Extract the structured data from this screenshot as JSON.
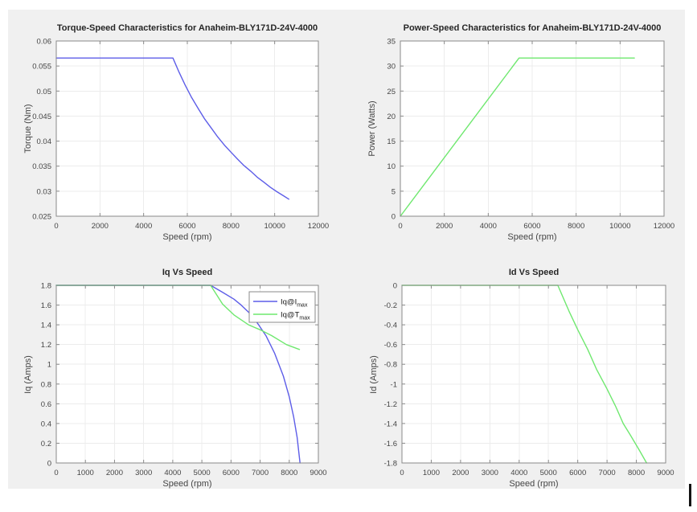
{
  "style": {
    "page_background": "#ffffff",
    "figure_background": "#f0f0f0",
    "plot_background": "#ffffff",
    "grid_color": "#ececec",
    "axis_color": "#8a8a8a",
    "tick_text_color": "#454545",
    "title_text_color": "#262626",
    "blue_line": "#5d5de8",
    "green_line": "#6fe86f",
    "legend_border": "#8a8a8a",
    "legend_background": "#ffffff"
  },
  "chart_data": [
    {
      "type": "line",
      "title": "Torque-Speed Characteristics for Anaheim-BLY171D-24V-4000",
      "xlabel": "Speed (rpm)",
      "ylabel": "Torque (Nm)",
      "xlim": [
        0,
        12000
      ],
      "ylim": [
        0.025,
        0.06
      ],
      "grid": true,
      "legend": null,
      "xticks": [
        0,
        2000,
        4000,
        6000,
        8000,
        10000,
        12000
      ],
      "xtick_labels": [
        "0",
        "2000",
        "4000",
        "6000",
        "8000",
        "10000",
        "12000"
      ],
      "yticks": [
        0.025,
        0.03,
        0.035,
        0.04,
        0.045,
        0.05,
        0.055,
        0.06
      ],
      "ytick_labels": [
        "0.025",
        "0.03",
        "0.035",
        "0.04",
        "0.045",
        "0.05",
        "0.055",
        "0.06"
      ],
      "series": [
        {
          "name": "Torque",
          "color": "#5d5de8",
          "points": [
            [
              0,
              0.0566
            ],
            [
              5340,
              0.0566
            ],
            [
              5600,
              0.054
            ],
            [
              5900,
              0.0512
            ],
            [
              6200,
              0.0487
            ],
            [
              6500,
              0.0465
            ],
            [
              6800,
              0.0444
            ],
            [
              7100,
              0.0426
            ],
            [
              7400,
              0.0408
            ],
            [
              7700,
              0.0392
            ],
            [
              8000,
              0.0378
            ],
            [
              8300,
              0.0364
            ],
            [
              8600,
              0.0351
            ],
            [
              8900,
              0.034
            ],
            [
              9200,
              0.0328
            ],
            [
              9500,
              0.0318
            ],
            [
              9800,
              0.0308
            ],
            [
              10100,
              0.0299
            ],
            [
              10400,
              0.0291
            ],
            [
              10650,
              0.0284
            ]
          ]
        }
      ]
    },
    {
      "type": "line",
      "title": "Power-Speed Characteristics for Anaheim-BLY171D-24V-4000",
      "xlabel": "Speed (rpm)",
      "ylabel": "Power (Watts)",
      "xlim": [
        0,
        12000
      ],
      "ylim": [
        0,
        35
      ],
      "grid": true,
      "legend": null,
      "xticks": [
        0,
        2000,
        4000,
        6000,
        8000,
        10000,
        12000
      ],
      "xtick_labels": [
        "0",
        "2000",
        "4000",
        "6000",
        "8000",
        "10000",
        "12000"
      ],
      "yticks": [
        0,
        5,
        10,
        15,
        20,
        25,
        30,
        35
      ],
      "ytick_labels": [
        "0",
        "5",
        "10",
        "15",
        "20",
        "25",
        "30",
        "35"
      ],
      "series": [
        {
          "name": "Power",
          "color": "#6fe86f",
          "points": [
            [
              0,
              0
            ],
            [
              5400,
              31.6
            ],
            [
              10650,
              31.6
            ]
          ]
        }
      ]
    },
    {
      "type": "line",
      "title": "Iq Vs Speed",
      "xlabel": "Speed (rpm)",
      "ylabel": "Iq (Amps)",
      "xlim": [
        0,
        9000
      ],
      "ylim": [
        0,
        1.8
      ],
      "grid": true,
      "legend": {
        "position": "inside-top-right",
        "entries": [
          {
            "text": "Iq@I",
            "sub": "max",
            "color": "#5d5de8"
          },
          {
            "text": "Iq@T",
            "sub": "max",
            "color": "#6fe86f"
          }
        ]
      },
      "xticks": [
        0,
        1000,
        2000,
        3000,
        4000,
        5000,
        6000,
        7000,
        8000,
        9000
      ],
      "xtick_labels": [
        "0",
        "1000",
        "2000",
        "3000",
        "4000",
        "5000",
        "6000",
        "7000",
        "8000",
        "9000"
      ],
      "yticks": [
        0,
        0.2,
        0.4,
        0.6,
        0.8,
        1,
        1.2,
        1.4,
        1.6,
        1.8
      ],
      "ytick_labels": [
        "0",
        "0.2",
        "0.4",
        "0.6",
        "0.8",
        "1",
        "1.2",
        "1.4",
        "1.6",
        "1.8"
      ],
      "series": [
        {
          "name": "Iq@I_max",
          "color": "#5d5de8",
          "points": [
            [
              0,
              1.8
            ],
            [
              5300,
              1.8
            ],
            [
              5710,
              1.73
            ],
            [
              6100,
              1.66
            ],
            [
              6350,
              1.6
            ],
            [
              6700,
              1.5
            ],
            [
              6950,
              1.4
            ],
            [
              7200,
              1.29
            ],
            [
              7500,
              1.11
            ],
            [
              7800,
              0.88
            ],
            [
              8000,
              0.67
            ],
            [
              8150,
              0.47
            ],
            [
              8270,
              0.26
            ],
            [
              8370,
              0
            ]
          ]
        },
        {
          "name": "Iq@T_max",
          "color": "#6fe86f",
          "points": [
            [
              0,
              1.8
            ],
            [
              5300,
              1.8
            ],
            [
              5710,
              1.61
            ],
            [
              6100,
              1.5
            ],
            [
              6600,
              1.4
            ],
            [
              7000,
              1.35
            ],
            [
              7400,
              1.29
            ],
            [
              7900,
              1.2
            ],
            [
              8350,
              1.15
            ]
          ]
        }
      ]
    },
    {
      "type": "line",
      "title": "Id Vs Speed",
      "xlabel": "Speed (rpm)",
      "ylabel": "Id (Amps)",
      "xlim": [
        0,
        9000
      ],
      "ylim": [
        -1.8,
        0
      ],
      "grid": true,
      "legend": null,
      "xticks": [
        0,
        1000,
        2000,
        3000,
        4000,
        5000,
        6000,
        7000,
        8000,
        9000
      ],
      "xtick_labels": [
        "0",
        "1000",
        "2000",
        "3000",
        "4000",
        "5000",
        "6000",
        "7000",
        "8000",
        "9000"
      ],
      "yticks": [
        -1.8,
        -1.6,
        -1.4,
        -1.2,
        -1,
        -0.8,
        -0.6,
        -0.4,
        -0.2,
        0
      ],
      "ytick_labels": [
        "-1.8",
        "-1.6",
        "-1.4",
        "-1.2",
        "-1",
        "-0.8",
        "-0.6",
        "-0.4",
        "-0.2",
        "0"
      ],
      "series": [
        {
          "name": "Id",
          "color": "#6fe86f",
          "points": [
            [
              0,
              0
            ],
            [
              5320,
              0
            ],
            [
              5700,
              -0.26
            ],
            [
              6000,
              -0.45
            ],
            [
              6340,
              -0.65
            ],
            [
              6640,
              -0.85
            ],
            [
              7000,
              -1.05
            ],
            [
              7300,
              -1.23
            ],
            [
              7550,
              -1.4
            ],
            [
              7800,
              -1.52
            ],
            [
              8100,
              -1.67
            ],
            [
              8350,
              -1.8
            ]
          ]
        }
      ]
    }
  ]
}
